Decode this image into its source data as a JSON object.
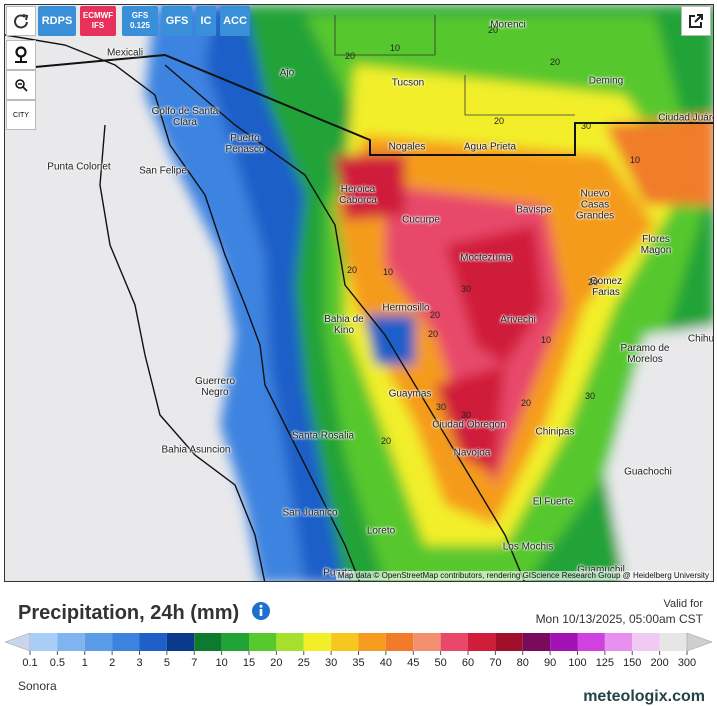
{
  "toolbar": {
    "buttons": [
      {
        "label": "RDPS",
        "color": "#3a8fd9"
      },
      {
        "label": "ECMWF IFS",
        "color": "#e8315a"
      },
      {
        "label": "GFS 0.125",
        "color": "#3a8fd9"
      },
      {
        "label": "GFS",
        "color": "#3a8fd9"
      },
      {
        "label": "IC",
        "color": "#3a8fd9"
      },
      {
        "label": "ACC",
        "color": "#3a8fd9"
      }
    ],
    "city_toggle": "CITY"
  },
  "map": {
    "cities": [
      "Mexicali",
      "Morenci",
      "Ajo",
      "Tucson",
      "Deming",
      "Golfo de Santa Clara",
      "Puerto Penasco",
      "Punta Colonet",
      "San Felipe",
      "Nogales",
      "Agua Prieta",
      "Ciudad Juáre",
      "Heroica Caborca",
      "Cucurpe",
      "Bavispe",
      "Nuevo Casas Grandes",
      "Flores Magon",
      "Moctezuma",
      "Hermosillo",
      "Gomez Farias",
      "Bahia de Kino",
      "Arivechi",
      "Chihu",
      "Paramo de Morelos",
      "Guerrero Negro",
      "Guaymas",
      "Ciudad Obregon",
      "Santa Rosalia",
      "Bahia Asuncion",
      "Chinipas",
      "Navojoa",
      "Guachochi",
      "El Fuerte",
      "San Juanico",
      "Loreto",
      "Los Mochis",
      "Guamuchil",
      "Puerto"
    ],
    "contour_labels": [
      "20",
      "10",
      "20",
      "20",
      "20",
      "30",
      "20",
      "10",
      "20",
      "30",
      "20",
      "20",
      "30",
      "30",
      "20",
      "10",
      "30",
      "20",
      "10"
    ],
    "attribution": "Map data © OpenStreetMap contributors, rendering GIScience Research Group @ Heidelberg University"
  },
  "legend": {
    "title": "Precipitation, 24h (mm)",
    "valid_label": "Valid for",
    "valid_time": "Mon 10/13/2025, 05:00am CST",
    "labels": [
      0.1,
      0.5,
      1,
      2,
      3,
      5,
      7,
      10,
      15,
      20,
      25,
      30,
      35,
      40,
      45,
      50,
      60,
      70,
      80,
      90,
      100,
      125,
      150,
      200,
      300
    ],
    "colors": [
      "#c9d6ea",
      "#a9cdf6",
      "#80b4f1",
      "#5b9ce9",
      "#3c83e0",
      "#1f5fc8",
      "#0b3a8c",
      "#0e7a2f",
      "#22a337",
      "#57c82d",
      "#a7e02c",
      "#f2ef2a",
      "#f6c81f",
      "#f59b1f",
      "#f17b2b",
      "#f2906f",
      "#e8496b",
      "#d01d3a",
      "#a0102b",
      "#7a0a5c",
      "#a112b2",
      "#d042e0",
      "#e890f0",
      "#f1c9f5",
      "#e6e6e6",
      "#cfcfcf"
    ]
  },
  "footer": {
    "region": "Sonora",
    "brand": "meteologix.com"
  }
}
